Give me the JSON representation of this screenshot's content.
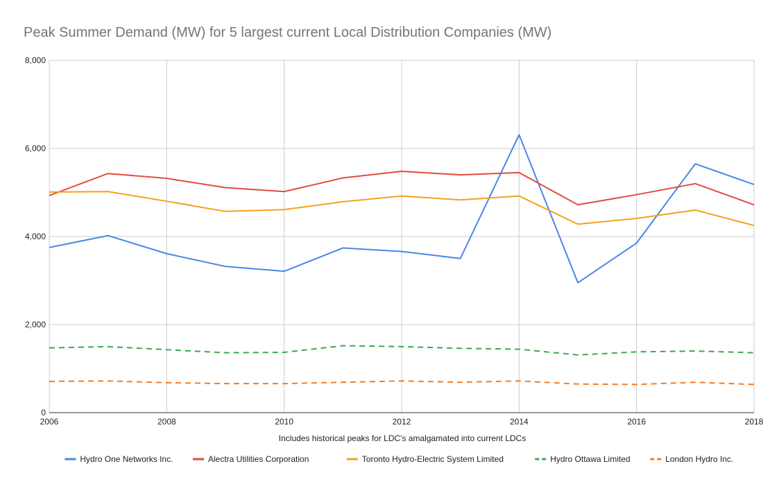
{
  "chart_data": {
    "type": "line",
    "title": "Peak Summer Demand (MW) for 5 largest current Local Distribution Companies (MW)",
    "xlabel": "Includes historical peaks for LDC's amalgamated into current LDCs",
    "ylabel": "",
    "x": [
      2006,
      2007,
      2008,
      2009,
      2010,
      2011,
      2012,
      2013,
      2014,
      2015,
      2016,
      2017,
      2018
    ],
    "xlim": [
      2006,
      2018
    ],
    "ylim": [
      0,
      8000
    ],
    "x_ticks": [
      "2006",
      "2008",
      "2010",
      "2012",
      "2014",
      "2016",
      "2018"
    ],
    "x_tick_values": [
      2006,
      2008,
      2010,
      2012,
      2014,
      2016,
      2018
    ],
    "y_ticks": [
      "0",
      "2,000",
      "4,000",
      "6,000",
      "8,000"
    ],
    "y_tick_values": [
      0,
      2000,
      4000,
      6000,
      8000
    ],
    "grid": true,
    "legend_position": "bottom",
    "series": [
      {
        "name": "Hydro One Networks Inc.",
        "color": "#4a86e8",
        "dashed": false,
        "values": [
          3750,
          4020,
          3610,
          3320,
          3210,
          3740,
          3660,
          3500,
          6310,
          2950,
          3850,
          5650,
          5180
        ]
      },
      {
        "name": "Alectra Utilities Corporation",
        "color": "#e34b3c",
        "dashed": false,
        "values": [
          4930,
          5430,
          5320,
          5110,
          5020,
          5330,
          5480,
          5400,
          5450,
          4720,
          4950,
          5200,
          4720
        ]
      },
      {
        "name": "Toronto Hydro-Electric System Limited",
        "color": "#f4a11b",
        "dashed": false,
        "values": [
          5010,
          5020,
          4800,
          4570,
          4610,
          4790,
          4920,
          4830,
          4920,
          4280,
          4410,
          4600,
          4250
        ]
      },
      {
        "name": "Hydro Ottawa Limited",
        "color": "#38a852",
        "dashed": true,
        "values": [
          1470,
          1500,
          1430,
          1360,
          1370,
          1520,
          1500,
          1460,
          1440,
          1310,
          1380,
          1400,
          1360
        ]
      },
      {
        "name": "London Hydro Inc.",
        "color": "#f57c1f",
        "dashed": true,
        "values": [
          710,
          720,
          680,
          660,
          660,
          690,
          720,
          690,
          720,
          650,
          640,
          690,
          640
        ]
      }
    ]
  }
}
